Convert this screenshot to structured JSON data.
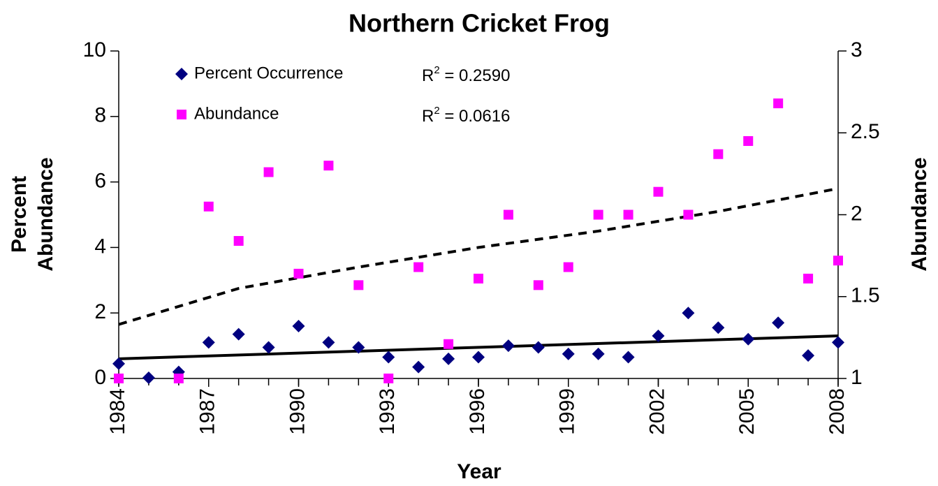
{
  "chart_data": {
    "type": "scatter",
    "title": "Northern Cricket Frog",
    "xlabel": "Year",
    "ylabel": [
      "Percent",
      "Abundance"
    ],
    "y2label": "Abundance",
    "x": [
      1984,
      1985,
      1986,
      1987,
      1988,
      1989,
      1990,
      1991,
      1992,
      1993,
      1994,
      1995,
      1996,
      1997,
      1998,
      1999,
      2000,
      2001,
      2002,
      2003,
      2004,
      2005,
      2006,
      2007,
      2008
    ],
    "series": [
      {
        "name": "Percent Occurrence",
        "color": "#000080",
        "marker": "diamond",
        "axis": "y",
        "values": [
          0.45,
          0.02,
          0.2,
          1.1,
          1.35,
          0.95,
          1.6,
          1.1,
          0.95,
          0.65,
          0.35,
          0.6,
          0.65,
          1.0,
          0.95,
          0.75,
          0.75,
          0.65,
          1.3,
          2.0,
          1.55,
          1.2,
          1.7,
          0.7,
          1.1
        ]
      },
      {
        "name": "Abundance",
        "color": "#ff00ff",
        "marker": "square",
        "axis": "y2",
        "values": [
          1.0,
          null,
          1.0,
          2.05,
          1.84,
          2.26,
          1.64,
          2.3,
          1.57,
          1.0,
          1.68,
          1.21,
          1.61,
          2.0,
          1.57,
          1.68,
          2.0,
          2.0,
          2.14,
          2.0,
          2.37,
          2.45,
          2.68,
          1.61,
          1.72
        ]
      }
    ],
    "trendlines": [
      {
        "axis": "y",
        "style": "solid",
        "x": [
          1984,
          2008
        ],
        "values": [
          0.6,
          1.3
        ]
      },
      {
        "axis": "y2",
        "style": "dashed",
        "x": [
          1984,
          1988,
          1992,
          1996,
          2000,
          2004,
          2008
        ],
        "values": [
          1.33,
          1.55,
          1.68,
          1.8,
          1.9,
          2.02,
          2.16
        ]
      }
    ],
    "r2_labels": [
      {
        "prefix": "R",
        "sup": "2",
        "text": " = 0.2590"
      },
      {
        "prefix": "R",
        "sup": "2",
        "text": " = 0.0616"
      }
    ],
    "xlim": [
      1984,
      2008
    ],
    "xticks": [
      1984,
      1987,
      1990,
      1993,
      1996,
      1999,
      2002,
      2005,
      2008
    ],
    "ylim": [
      0,
      10
    ],
    "yticks": [
      0,
      2,
      4,
      6,
      8,
      10
    ],
    "y2lim": [
      1,
      3
    ],
    "y2ticks": [
      1,
      1.5,
      2,
      2.5,
      3
    ],
    "grid": false
  }
}
